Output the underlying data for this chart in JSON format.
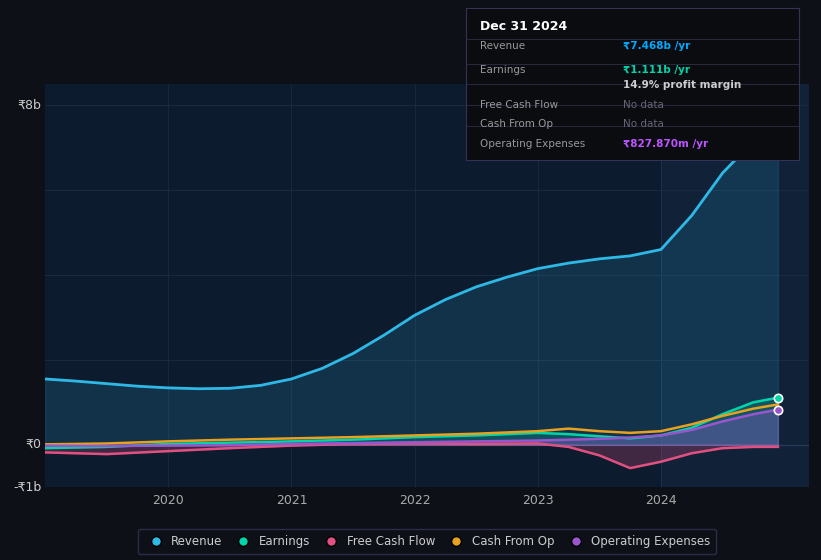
{
  "bg_color": "#0d1117",
  "plot_bg_color": "#0d1b2e",
  "grid_color": "#1a2d45",
  "x_ticks": [
    2020,
    2021,
    2022,
    2023,
    2024
  ],
  "x_min": 2019.0,
  "x_max": 2025.2,
  "y_min": -1.0,
  "y_max": 8.5,
  "ylabel_top": "₹8b",
  "ylabel_zero": "₹0",
  "ylabel_bottom": "-₹1b",
  "revenue_x": [
    2019.0,
    2019.25,
    2019.5,
    2019.75,
    2020.0,
    2020.25,
    2020.5,
    2020.75,
    2021.0,
    2021.25,
    2021.5,
    2021.75,
    2022.0,
    2022.25,
    2022.5,
    2022.75,
    2023.0,
    2023.25,
    2023.5,
    2023.75,
    2024.0,
    2024.25,
    2024.5,
    2024.75,
    2024.95
  ],
  "revenue_y": [
    1.55,
    1.5,
    1.44,
    1.38,
    1.34,
    1.32,
    1.33,
    1.4,
    1.55,
    1.8,
    2.15,
    2.58,
    3.05,
    3.42,
    3.72,
    3.95,
    4.15,
    4.28,
    4.38,
    4.45,
    4.6,
    5.4,
    6.4,
    7.15,
    7.47
  ],
  "earnings_x": [
    2019.0,
    2019.5,
    2020.0,
    2020.5,
    2021.0,
    2021.5,
    2022.0,
    2022.5,
    2023.0,
    2023.25,
    2023.5,
    2023.75,
    2024.0,
    2024.25,
    2024.5,
    2024.75,
    2024.95
  ],
  "earnings_y": [
    -0.08,
    -0.05,
    0.02,
    0.05,
    0.08,
    0.12,
    0.18,
    0.22,
    0.28,
    0.25,
    0.2,
    0.15,
    0.22,
    0.4,
    0.72,
    1.0,
    1.11
  ],
  "fcf_x": [
    2019.0,
    2019.5,
    2020.0,
    2020.5,
    2021.0,
    2021.5,
    2022.0,
    2022.5,
    2023.0,
    2023.25,
    2023.5,
    2023.75,
    2024.0,
    2024.25,
    2024.5,
    2024.75,
    2024.95
  ],
  "fcf_y": [
    -0.18,
    -0.22,
    -0.15,
    -0.08,
    -0.02,
    0.02,
    0.03,
    0.02,
    0.03,
    -0.05,
    -0.25,
    -0.55,
    -0.4,
    -0.2,
    -0.08,
    -0.05,
    -0.05
  ],
  "cashop_x": [
    2019.0,
    2019.5,
    2020.0,
    2020.5,
    2021.0,
    2021.5,
    2022.0,
    2022.5,
    2023.0,
    2023.25,
    2023.5,
    2023.75,
    2024.0,
    2024.25,
    2024.5,
    2024.75,
    2024.95
  ],
  "cashop_y": [
    0.01,
    0.03,
    0.08,
    0.12,
    0.15,
    0.18,
    0.22,
    0.26,
    0.32,
    0.38,
    0.32,
    0.28,
    0.32,
    0.48,
    0.68,
    0.85,
    0.95
  ],
  "opex_x": [
    2019.0,
    2019.5,
    2020.0,
    2020.5,
    2021.0,
    2021.5,
    2022.0,
    2022.5,
    2023.0,
    2023.25,
    2023.5,
    2023.75,
    2024.0,
    2024.25,
    2024.5,
    2024.75,
    2024.95
  ],
  "opex_y": [
    -0.02,
    -0.03,
    -0.02,
    -0.01,
    0.02,
    0.04,
    0.06,
    0.08,
    0.1,
    0.12,
    0.14,
    0.17,
    0.22,
    0.35,
    0.55,
    0.72,
    0.83
  ],
  "revenue_color": "#2eb8e6",
  "earnings_color": "#00d4aa",
  "fcf_color": "#e05080",
  "cashop_color": "#e8a020",
  "opex_color": "#9955cc",
  "info_box": {
    "title": "Dec 31 2024",
    "revenue_label": "Revenue",
    "revenue_value": "₹7.468b /yr",
    "earnings_label": "Earnings",
    "earnings_value": "₹1.111b /yr",
    "margin_text": "14.9% profit margin",
    "fcf_label": "Free Cash Flow",
    "fcf_value": "No data",
    "cashop_label": "Cash From Op",
    "cashop_value": "No data",
    "opex_label": "Operating Expenses",
    "opex_value": "₹827.870m /yr"
  },
  "legend_items": [
    {
      "label": "Revenue",
      "color": "#2eb8e6"
    },
    {
      "label": "Earnings",
      "color": "#00d4aa"
    },
    {
      "label": "Free Cash Flow",
      "color": "#e05080"
    },
    {
      "label": "Cash From Op",
      "color": "#e8a020"
    },
    {
      "label": "Operating Expenses",
      "color": "#9955cc"
    }
  ]
}
